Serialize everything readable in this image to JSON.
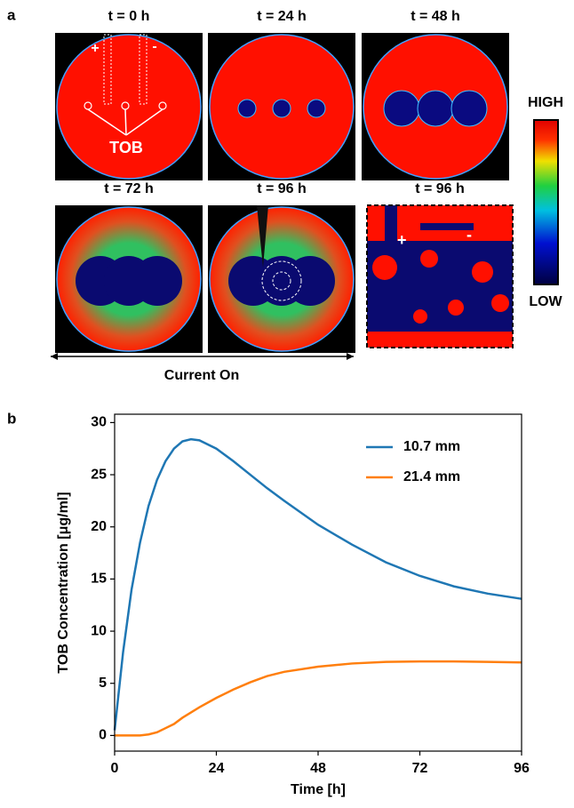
{
  "figure": {
    "panel_a_label": "a",
    "panel_b_label": "b",
    "tiles": [
      "t = 0 h",
      "t = 24 h",
      "t = 48 h",
      "t = 72 h",
      "t = 96 h",
      "t = 96 h"
    ],
    "electrode_plus": "+",
    "electrode_minus": "-",
    "tob_label": "TOB",
    "inset_plus": "+",
    "inset_minus": "-",
    "colorbar_high": "HIGH",
    "colorbar_low": "LOW",
    "current_on": "Current On"
  },
  "chart_data": {
    "type": "line",
    "x_label": "Time [h]",
    "y_label": "TOB Concentration [μg/ml]",
    "x": [
      0,
      2,
      4,
      6,
      8,
      10,
      12,
      14,
      16,
      18,
      20,
      24,
      28,
      32,
      36,
      40,
      48,
      56,
      64,
      72,
      80,
      88,
      96
    ],
    "series": [
      {
        "name": "10.7 mm",
        "color": "#1f77b4",
        "values": [
          0.5,
          8,
          14,
          18.5,
          22,
          24.5,
          26.3,
          27.5,
          28.2,
          28.4,
          28.3,
          27.5,
          26.3,
          25,
          23.7,
          22.5,
          20.2,
          18.3,
          16.6,
          15.3,
          14.3,
          13.6,
          13.1
        ]
      },
      {
        "name": "21.4 mm",
        "color": "#ff7f0e",
        "values": [
          0,
          0,
          0,
          0,
          0.1,
          0.3,
          0.7,
          1.1,
          1.7,
          2.2,
          2.7,
          3.6,
          4.4,
          5.1,
          5.7,
          6.1,
          6.6,
          6.9,
          7.05,
          7.1,
          7.1,
          7.05,
          7.0
        ]
      }
    ],
    "xlim": [
      0,
      96
    ],
    "xticks": [
      0,
      24,
      48,
      72,
      96
    ],
    "ylim": [
      -1.5,
      30.8
    ],
    "yticks": [
      0,
      5,
      10,
      15,
      20,
      25,
      30
    ],
    "legend": "upper right"
  }
}
